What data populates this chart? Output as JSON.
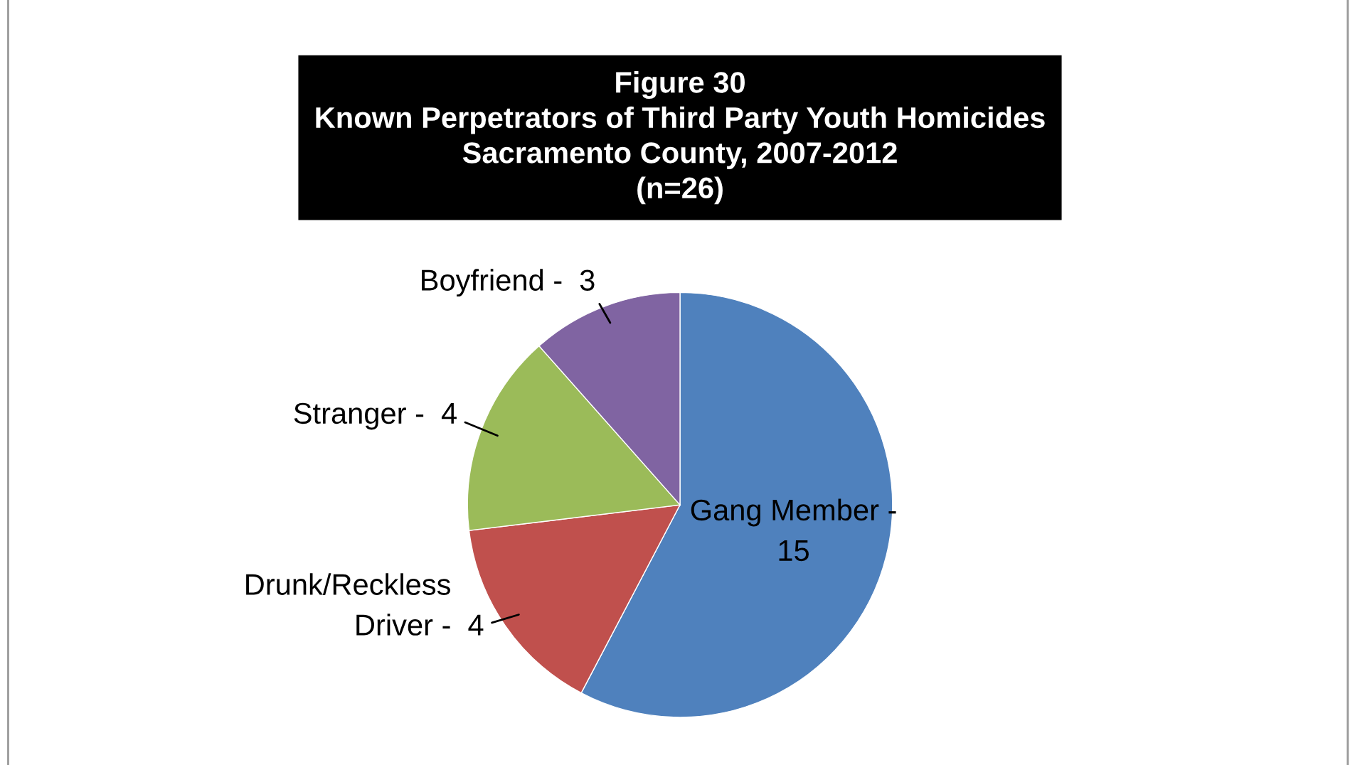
{
  "chart_data": {
    "type": "pie",
    "title": "Figure 30\nKnown Perpetrators of Third Party Youth Homicides\nSacramento County, 2007-2012\n(n=26)",
    "categories": [
      "Gang Member -",
      "Drunk/Reckless Driver -",
      "Stranger -",
      "Boyfriend -"
    ],
    "values": [
      15,
      4,
      4,
      3
    ],
    "data_labels": true,
    "colors": [
      "#4f81bd",
      "#c0504d",
      "#9bbb59",
      "#8064a2"
    ]
  }
}
